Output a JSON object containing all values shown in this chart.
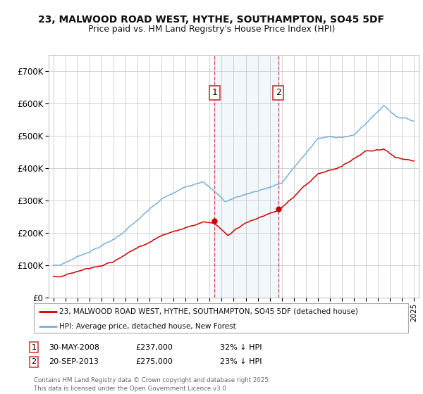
{
  "title": "23, MALWOOD ROAD WEST, HYTHE, SOUTHAMPTON, SO45 5DF",
  "subtitle": "Price paid vs. HM Land Registry's House Price Index (HPI)",
  "ylim": [
    0,
    750000
  ],
  "yticks": [
    0,
    100000,
    200000,
    300000,
    400000,
    500000,
    600000,
    700000
  ],
  "ytick_labels": [
    "£0",
    "£100K",
    "£200K",
    "£300K",
    "£400K",
    "£500K",
    "£600K",
    "£700K"
  ],
  "xlim_start": 1994.6,
  "xlim_end": 2025.4,
  "bg_color": "#ffffff",
  "plot_bg_color": "#ffffff",
  "grid_color": "#cccccc",
  "red_line_color": "#cc0000",
  "blue_line_color": "#7ab0d4",
  "marker1_x": 2008.41,
  "marker1_y": 237000,
  "marker2_x": 2013.72,
  "marker2_y": 275000,
  "annotation1_date": "30-MAY-2008",
  "annotation1_price": "£237,000",
  "annotation1_pct": "32% ↓ HPI",
  "annotation2_date": "20-SEP-2013",
  "annotation2_price": "£275,000",
  "annotation2_pct": "23% ↓ HPI",
  "legend_red": "23, MALWOOD ROAD WEST, HYTHE, SOUTHAMPTON, SO45 5DF (detached house)",
  "legend_blue": "HPI: Average price, detached house, New Forest",
  "footnote": "Contains HM Land Registry data © Crown copyright and database right 2025.\nThis data is licensed under the Open Government Licence v3.0.",
  "shade_x1": 2008.41,
  "shade_x2": 2013.72
}
